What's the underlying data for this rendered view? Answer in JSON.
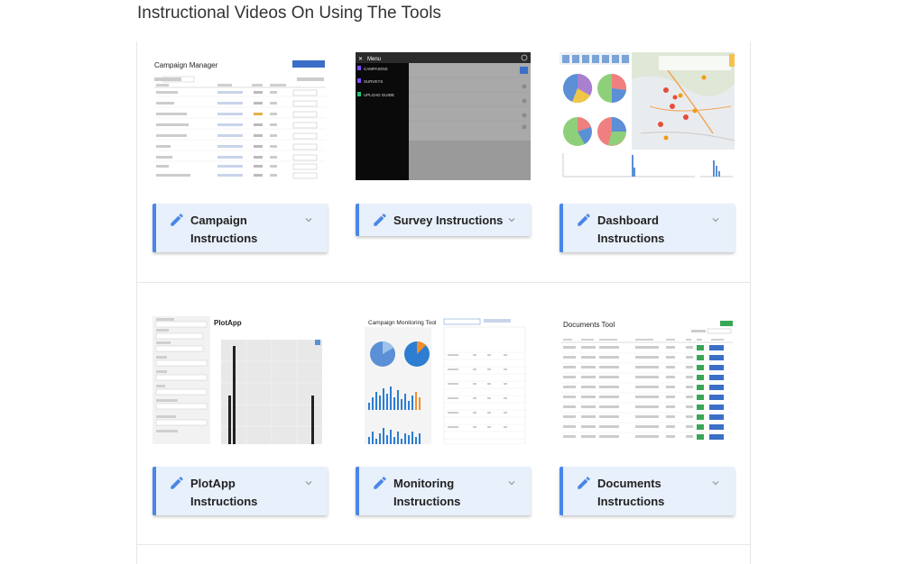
{
  "page": {
    "title": "Instructional Videos On Using The Tools"
  },
  "tools": [
    {
      "id": "campaign",
      "label": "Campaign Instructions",
      "thumb_title": "Campaign Manager"
    },
    {
      "id": "survey",
      "label": "Survey Instructions",
      "thumb_title": "Menu"
    },
    {
      "id": "dashboard",
      "label": "Dashboard Instructions",
      "thumb_title": ""
    },
    {
      "id": "plotapp",
      "label": "PlotApp Instructions",
      "thumb_title": "PlotApp"
    },
    {
      "id": "monitoring",
      "label": "Monitoring Instructions",
      "thumb_title": "Campaign Monitoring Tool"
    },
    {
      "id": "documents",
      "label": "Documents Instructions",
      "thumb_title": "Documents Tool"
    }
  ],
  "survey_menu": {
    "items": [
      "CAMPAIGNS",
      "SURVEYS",
      "UPLOAD GUIDE"
    ]
  },
  "icons": {
    "edit": "pencil-icon",
    "expand": "chevron-down-icon"
  },
  "colors": {
    "accent": "#4a86e8",
    "card_bg": "#e8f0fb"
  }
}
